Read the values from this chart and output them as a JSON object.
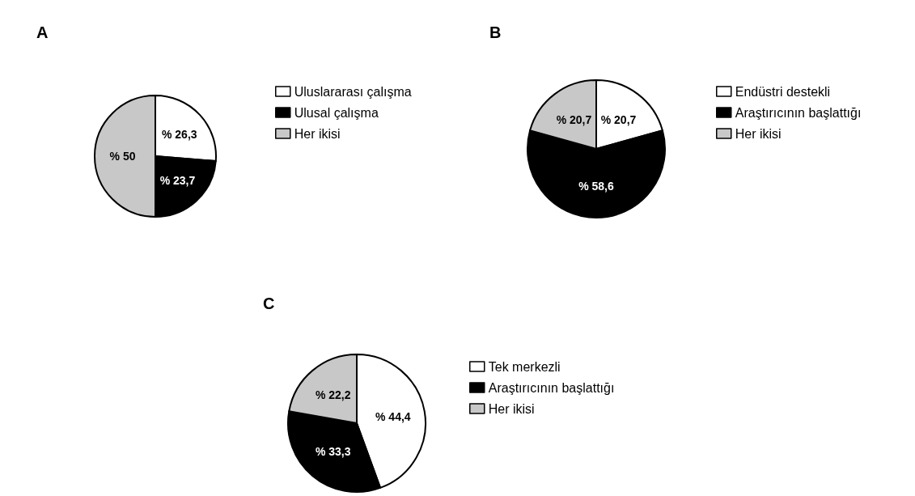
{
  "chart_data": [
    {
      "type": "pie",
      "title": "A",
      "categories": [
        "Uluslararası çalışma",
        "Ulusal çalışma",
        "Her ikisi"
      ],
      "values": [
        26.3,
        23.7,
        50
      ],
      "value_labels": [
        "% 26,3",
        "% 23,7",
        "% 50"
      ],
      "colors": [
        "#ffffff",
        "#000000",
        "#c8c8c8"
      ],
      "legend": "right"
    },
    {
      "type": "pie",
      "title": "B",
      "categories": [
        "Endüstri destekli",
        "Araştırıcının başlattığı",
        "Her ikisi"
      ],
      "values": [
        20.7,
        58.6,
        20.7
      ],
      "value_labels": [
        "% 20,7",
        "% 58,6",
        "% 20,7"
      ],
      "colors": [
        "#ffffff",
        "#000000",
        "#c8c8c8"
      ],
      "legend": "right"
    },
    {
      "type": "pie",
      "title": "C",
      "categories": [
        "Tek merkezli",
        "Araştırıcının başlattığı",
        "Her ikisi"
      ],
      "values": [
        44.4,
        33.3,
        22.2
      ],
      "value_labels": [
        "% 44,4",
        "% 33,3",
        "% 22,2"
      ],
      "colors": [
        "#ffffff",
        "#000000",
        "#c8c8c8"
      ],
      "legend": "right"
    }
  ]
}
